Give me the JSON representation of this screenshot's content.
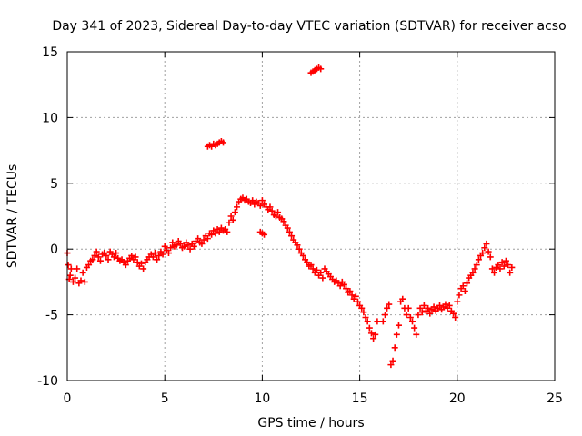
{
  "chart_data": {
    "type": "scatter",
    "title": "Day 341 of 2023, Sidereal Day-to-day VTEC variation (SDTVAR) for receiver acso",
    "xlabel": "GPS time / hours",
    "ylabel": "SDTVAR / TECUs",
    "xlim": [
      0,
      25
    ],
    "ylim": [
      -10,
      15
    ],
    "xticks": [
      "0",
      "5",
      "10",
      "15",
      "20",
      "25"
    ],
    "yticks": [
      "-10",
      "-5",
      "0",
      "5",
      "10",
      "15"
    ],
    "grid": true,
    "marker": "+",
    "color": "#ff0000",
    "series": [
      {
        "name": "SDTVAR",
        "points": [
          [
            0.0,
            -0.3
          ],
          [
            0.05,
            -1.2
          ],
          [
            0.1,
            -2.3
          ],
          [
            0.15,
            -2.0
          ],
          [
            0.2,
            -1.5
          ],
          [
            0.3,
            -2.5
          ],
          [
            0.4,
            -2.2
          ],
          [
            0.5,
            -1.5
          ],
          [
            0.6,
            -2.6
          ],
          [
            0.7,
            -2.4
          ],
          [
            0.8,
            -1.8
          ],
          [
            0.9,
            -2.5
          ],
          [
            1.0,
            -1.4
          ],
          [
            1.1,
            -1.2
          ],
          [
            1.2,
            -0.9
          ],
          [
            1.3,
            -0.8
          ],
          [
            1.4,
            -0.5
          ],
          [
            1.5,
            -0.2
          ],
          [
            1.6,
            -0.6
          ],
          [
            1.7,
            -0.9
          ],
          [
            1.8,
            -0.4
          ],
          [
            1.9,
            -0.3
          ],
          [
            2.0,
            -0.5
          ],
          [
            2.1,
            -0.8
          ],
          [
            2.2,
            -0.2
          ],
          [
            2.3,
            -0.4
          ],
          [
            2.4,
            -0.6
          ],
          [
            2.5,
            -0.3
          ],
          [
            2.6,
            -0.7
          ],
          [
            2.7,
            -0.9
          ],
          [
            2.8,
            -0.8
          ],
          [
            2.9,
            -1.0
          ],
          [
            3.0,
            -1.2
          ],
          [
            3.1,
            -0.9
          ],
          [
            3.2,
            -0.7
          ],
          [
            3.3,
            -0.5
          ],
          [
            3.4,
            -0.8
          ],
          [
            3.5,
            -0.6
          ],
          [
            3.6,
            -1.0
          ],
          [
            3.7,
            -1.3
          ],
          [
            3.8,
            -1.1
          ],
          [
            3.9,
            -1.5
          ],
          [
            4.0,
            -1.0
          ],
          [
            4.1,
            -0.8
          ],
          [
            4.2,
            -0.6
          ],
          [
            4.3,
            -0.4
          ],
          [
            4.4,
            -0.6
          ],
          [
            4.5,
            -0.3
          ],
          [
            4.6,
            -0.8
          ],
          [
            4.7,
            -0.5
          ],
          [
            4.8,
            -0.2
          ],
          [
            4.9,
            -0.4
          ],
          [
            5.0,
            0.2
          ],
          [
            5.1,
            -0.1
          ],
          [
            5.2,
            -0.3
          ],
          [
            5.3,
            0.1
          ],
          [
            5.4,
            0.5
          ],
          [
            5.5,
            0.2
          ],
          [
            5.6,
            0.3
          ],
          [
            5.7,
            0.6
          ],
          [
            5.8,
            0.4
          ],
          [
            5.9,
            0.1
          ],
          [
            6.0,
            0.2
          ],
          [
            6.1,
            0.5
          ],
          [
            6.2,
            0.3
          ],
          [
            6.3,
            0.0
          ],
          [
            6.4,
            0.4
          ],
          [
            6.5,
            0.2
          ],
          [
            6.6,
            0.6
          ],
          [
            6.7,
            0.8
          ],
          [
            6.8,
            0.5
          ],
          [
            6.9,
            0.4
          ],
          [
            7.0,
            0.7
          ],
          [
            7.1,
            1.0
          ],
          [
            7.2,
            0.8
          ],
          [
            7.3,
            1.2
          ],
          [
            7.4,
            1.1
          ],
          [
            7.5,
            1.4
          ],
          [
            7.6,
            1.2
          ],
          [
            7.7,
            1.5
          ],
          [
            7.8,
            1.3
          ],
          [
            7.9,
            1.6
          ],
          [
            8.0,
            1.4
          ],
          [
            8.1,
            1.5
          ],
          [
            8.2,
            1.3
          ],
          [
            7.2,
            7.8
          ],
          [
            7.3,
            7.9
          ],
          [
            7.4,
            7.8
          ],
          [
            7.5,
            8.0
          ],
          [
            7.6,
            7.9
          ],
          [
            7.7,
            8.0
          ],
          [
            7.8,
            8.1
          ],
          [
            7.9,
            8.2
          ],
          [
            8.0,
            8.1
          ],
          [
            8.3,
            2.0
          ],
          [
            8.4,
            2.5
          ],
          [
            8.5,
            2.2
          ],
          [
            8.6,
            2.8
          ],
          [
            8.7,
            3.2
          ],
          [
            8.8,
            3.6
          ],
          [
            8.9,
            3.8
          ],
          [
            9.0,
            3.9
          ],
          [
            9.1,
            3.7
          ],
          [
            9.2,
            3.8
          ],
          [
            9.3,
            3.6
          ],
          [
            9.4,
            3.5
          ],
          [
            9.5,
            3.7
          ],
          [
            9.6,
            3.4
          ],
          [
            9.7,
            3.6
          ],
          [
            9.8,
            3.5
          ],
          [
            9.9,
            3.3
          ],
          [
            10.0,
            3.7
          ],
          [
            10.1,
            3.4
          ],
          [
            10.2,
            3.2
          ],
          [
            10.3,
            3.0
          ],
          [
            10.4,
            3.2
          ],
          [
            10.5,
            2.9
          ],
          [
            10.6,
            2.6
          ],
          [
            10.7,
            2.5
          ],
          [
            10.8,
            2.8
          ],
          [
            10.9,
            2.4
          ],
          [
            11.0,
            2.3
          ],
          [
            11.1,
            2.1
          ],
          [
            11.2,
            1.8
          ],
          [
            11.3,
            1.6
          ],
          [
            11.4,
            1.3
          ],
          [
            11.5,
            1.0
          ],
          [
            11.6,
            0.7
          ],
          [
            11.7,
            0.5
          ],
          [
            11.8,
            0.3
          ],
          [
            11.9,
            0.0
          ],
          [
            12.0,
            -0.3
          ],
          [
            12.1,
            -0.5
          ],
          [
            12.2,
            -0.8
          ],
          [
            12.3,
            -1.0
          ],
          [
            12.4,
            -1.3
          ],
          [
            12.5,
            -1.2
          ],
          [
            12.6,
            -1.5
          ],
          [
            12.7,
            -1.8
          ],
          [
            12.8,
            -1.6
          ],
          [
            12.9,
            -2.0
          ],
          [
            13.0,
            -1.8
          ],
          [
            13.1,
            -2.2
          ],
          [
            13.2,
            -1.5
          ],
          [
            13.3,
            -1.7
          ],
          [
            13.4,
            -1.9
          ],
          [
            13.5,
            -2.1
          ],
          [
            13.6,
            -2.3
          ],
          [
            13.7,
            -2.5
          ],
          [
            13.8,
            -2.4
          ],
          [
            13.9,
            -2.6
          ],
          [
            14.0,
            -2.8
          ],
          [
            14.1,
            -2.5
          ],
          [
            14.2,
            -2.7
          ],
          [
            14.3,
            -3.0
          ],
          [
            14.4,
            -3.3
          ],
          [
            14.5,
            -3.2
          ],
          [
            14.6,
            -3.5
          ],
          [
            14.7,
            -3.8
          ],
          [
            14.8,
            -3.6
          ],
          [
            14.9,
            -4.0
          ],
          [
            15.0,
            -4.3
          ],
          [
            15.1,
            -4.5
          ],
          [
            15.2,
            -4.8
          ],
          [
            15.3,
            -5.2
          ],
          [
            15.4,
            -5.5
          ],
          [
            15.5,
            -6.0
          ],
          [
            15.6,
            -6.4
          ],
          [
            15.7,
            -6.8
          ],
          [
            15.8,
            -6.5
          ],
          [
            15.9,
            -5.5
          ],
          [
            12.5,
            13.4
          ],
          [
            12.6,
            13.5
          ],
          [
            12.7,
            13.6
          ],
          [
            12.8,
            13.7
          ],
          [
            12.9,
            13.8
          ],
          [
            13.0,
            13.7
          ],
          [
            9.9,
            1.3
          ],
          [
            10.0,
            1.2
          ],
          [
            10.1,
            1.1
          ],
          [
            16.2,
            -5.5
          ],
          [
            16.3,
            -5.0
          ],
          [
            16.4,
            -4.5
          ],
          [
            16.5,
            -4.2
          ],
          [
            16.6,
            -8.8
          ],
          [
            16.7,
            -8.5
          ],
          [
            16.8,
            -7.5
          ],
          [
            16.9,
            -6.5
          ],
          [
            17.0,
            -5.8
          ],
          [
            17.1,
            -4.0
          ],
          [
            17.2,
            -3.8
          ],
          [
            17.3,
            -4.5
          ],
          [
            17.4,
            -5.0
          ],
          [
            17.5,
            -4.5
          ],
          [
            17.6,
            -5.2
          ],
          [
            17.7,
            -5.5
          ],
          [
            17.8,
            -6.0
          ],
          [
            17.9,
            -6.5
          ],
          [
            18.0,
            -5.0
          ],
          [
            18.1,
            -4.5
          ],
          [
            18.2,
            -4.8
          ],
          [
            18.3,
            -4.3
          ],
          [
            18.4,
            -4.7
          ],
          [
            18.5,
            -4.5
          ],
          [
            18.6,
            -4.9
          ],
          [
            18.7,
            -4.6
          ],
          [
            18.8,
            -4.4
          ],
          [
            18.9,
            -4.7
          ],
          [
            19.0,
            -4.5
          ],
          [
            19.1,
            -4.3
          ],
          [
            19.2,
            -4.6
          ],
          [
            19.3,
            -4.4
          ],
          [
            19.4,
            -4.2
          ],
          [
            19.5,
            -4.5
          ],
          [
            19.6,
            -4.3
          ],
          [
            19.7,
            -4.7
          ],
          [
            19.8,
            -4.9
          ],
          [
            19.9,
            -5.2
          ],
          [
            20.0,
            -4.0
          ],
          [
            20.1,
            -3.5
          ],
          [
            20.2,
            -3.0
          ],
          [
            20.3,
            -2.8
          ],
          [
            20.4,
            -3.2
          ],
          [
            20.5,
            -2.6
          ],
          [
            20.6,
            -2.2
          ],
          [
            20.7,
            -2.0
          ],
          [
            20.8,
            -1.8
          ],
          [
            20.9,
            -1.5
          ],
          [
            21.0,
            -1.2
          ],
          [
            21.1,
            -0.8
          ],
          [
            21.2,
            -0.5
          ],
          [
            21.3,
            -0.3
          ],
          [
            21.4,
            0.1
          ],
          [
            21.5,
            0.4
          ],
          [
            21.6,
            -0.2
          ],
          [
            21.7,
            -0.6
          ],
          [
            21.8,
            -1.5
          ],
          [
            21.9,
            -1.8
          ],
          [
            22.0,
            -1.4
          ],
          [
            22.1,
            -1.2
          ],
          [
            22.2,
            -1.5
          ],
          [
            22.3,
            -1.0
          ],
          [
            22.4,
            -1.3
          ],
          [
            22.5,
            -0.9
          ],
          [
            22.6,
            -1.2
          ],
          [
            22.7,
            -1.8
          ],
          [
            22.8,
            -1.4
          ]
        ]
      }
    ]
  }
}
